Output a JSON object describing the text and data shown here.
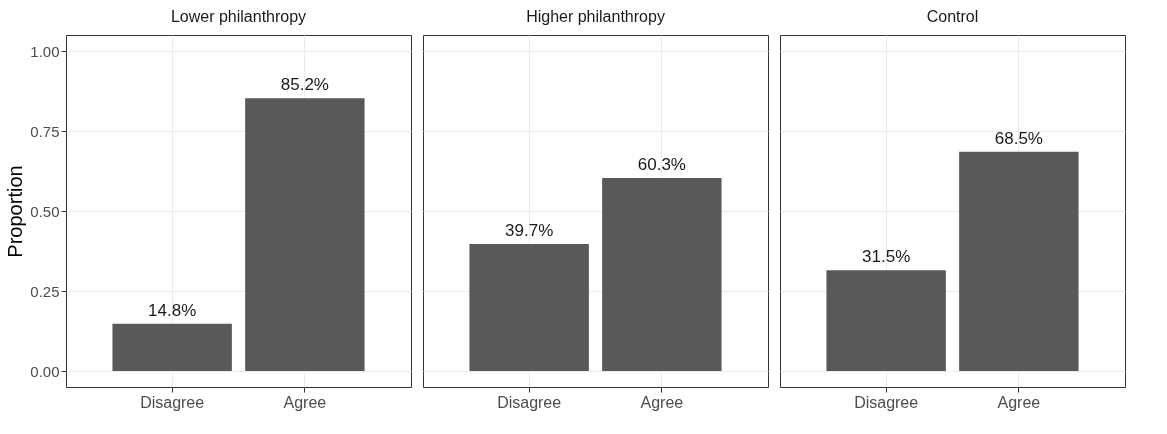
{
  "chart_data": [
    {
      "type": "bar",
      "title": "Lower philanthropy",
      "ylabel": "Proportion",
      "categories": [
        "Disagree",
        "Agree"
      ],
      "values": [
        0.148,
        0.852
      ],
      "value_labels": [
        "14.8%",
        "85.2%"
      ],
      "color": "#595959",
      "ylim": [
        -0.05,
        1.05
      ],
      "yticks": [
        {
          "value": 0,
          "label": "0.00"
        },
        {
          "value": 0.25,
          "label": "0.25"
        },
        {
          "value": 0.5,
          "label": "0.50"
        },
        {
          "value": 0.75,
          "label": "0.75"
        },
        {
          "value": 1,
          "label": "1.00"
        }
      ],
      "grid": true
    },
    {
      "type": "bar",
      "title": "Higher philanthropy",
      "categories": [
        "Disagree",
        "Agree"
      ],
      "values": [
        0.397,
        0.603
      ],
      "value_labels": [
        "39.7%",
        "60.3%"
      ],
      "color": "#595959",
      "ylim": [
        -0.05,
        1.05
      ],
      "yticks": [
        {
          "value": 0,
          "label": null
        },
        {
          "value": 0.25,
          "label": null
        },
        {
          "value": 0.5,
          "label": null
        },
        {
          "value": 0.75,
          "label": null
        },
        {
          "value": 1,
          "label": null
        }
      ],
      "grid": true,
      "tick_labels": "x"
    },
    {
      "type": "bar",
      "title": "Control",
      "categories": [
        "Disagree",
        "Agree"
      ],
      "values": [
        0.315,
        0.685
      ],
      "value_labels": [
        "31.5%",
        "68.5%"
      ],
      "color": "#595959",
      "ylim": [
        -0.05,
        1.05
      ],
      "yticks": [
        {
          "value": 0,
          "label": null
        },
        {
          "value": 0.25,
          "label": null
        },
        {
          "value": 0.5,
          "label": null
        },
        {
          "value": 0.75,
          "label": null
        },
        {
          "value": 1,
          "label": null
        }
      ],
      "grid": true,
      "tick_labels": "x"
    }
  ]
}
